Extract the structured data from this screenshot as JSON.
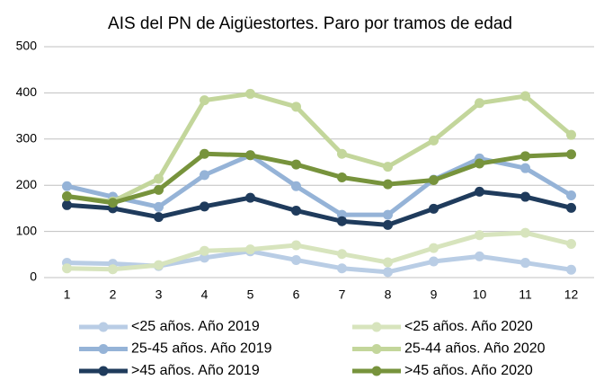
{
  "chart_data": {
    "type": "line",
    "title": "AIS del PN de Aigüestortes. Paro por tramos de edad",
    "categories": [
      1,
      2,
      3,
      4,
      5,
      6,
      7,
      8,
      9,
      10,
      11,
      12
    ],
    "series": [
      {
        "name": "<25 años. Año 2019",
        "color": "#b9cde5",
        "values": [
          32,
          30,
          25,
          43,
          57,
          38,
          20,
          12,
          35,
          46,
          32,
          17
        ]
      },
      {
        "name": "25-45 años. Año 2019",
        "color": "#95b3d7",
        "values": [
          198,
          175,
          153,
          222,
          265,
          198,
          136,
          136,
          212,
          258,
          237,
          178
        ]
      },
      {
        "name": ">45 años. Año 2019",
        "color": "#1f3b5c",
        "values": [
          157,
          150,
          131,
          154,
          173,
          145,
          122,
          114,
          149,
          186,
          175,
          151
        ]
      },
      {
        "name": "<25 años. Año 2020",
        "color": "#d7e4bd",
        "values": [
          20,
          18,
          27,
          58,
          61,
          70,
          51,
          33,
          64,
          92,
          97,
          73
        ]
      },
      {
        "name": "25-44 años. Año 2020",
        "color": "#c3d69b",
        "values": [
          176,
          165,
          214,
          384,
          398,
          370,
          268,
          240,
          297,
          378,
          393,
          309
        ]
      },
      {
        "name": ">45 años. Año 2020",
        "color": "#77933c",
        "values": [
          176,
          162,
          190,
          268,
          265,
          245,
          217,
          202,
          211,
          247,
          263,
          267
        ]
      }
    ],
    "ylim": [
      0,
      500
    ],
    "yticks": [
      0,
      100,
      200,
      300,
      400,
      500
    ],
    "grid": true
  }
}
